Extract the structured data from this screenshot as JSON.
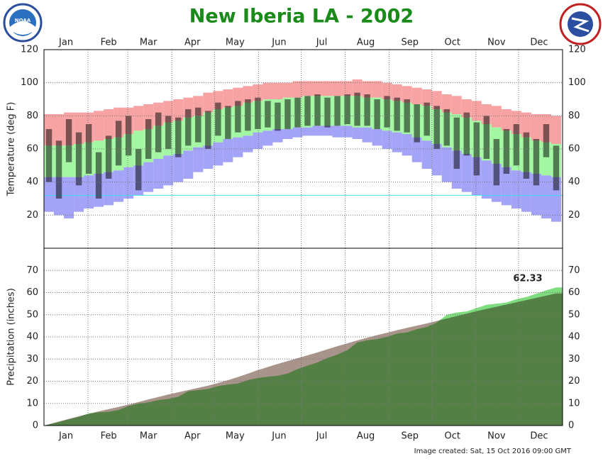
{
  "title": "New Iberia LA - 2002",
  "footer": "Image created: Sat, 15 Oct 2016 09:00 GMT",
  "chart_data": [
    {
      "type": "range_bar",
      "ylabel": "Temperature (deg F)",
      "x": [
        4,
        11,
        18,
        25,
        32,
        39,
        46,
        53,
        60,
        67,
        74,
        81,
        88,
        95,
        102,
        109,
        116,
        123,
        130,
        137,
        144,
        151,
        158,
        165,
        172,
        179,
        186,
        193,
        200,
        207,
        214,
        221,
        228,
        235,
        242,
        249,
        256,
        263,
        270,
        277,
        284,
        291,
        298,
        305,
        312,
        319,
        326,
        333,
        340,
        347,
        354,
        361
      ],
      "xlim": [
        0.5,
        365.5
      ],
      "xticks": [
        {
          "value": 16,
          "label": "Jan"
        },
        {
          "value": 46,
          "label": "Feb"
        },
        {
          "value": 74,
          "label": "Mar"
        },
        {
          "value": 105,
          "label": "Apr"
        },
        {
          "value": 135,
          "label": "May"
        },
        {
          "value": 166,
          "label": "Jun"
        },
        {
          "value": 196,
          "label": "Jul"
        },
        {
          "value": 227,
          "label": "Aug"
        },
        {
          "value": 258,
          "label": "Sep"
        },
        {
          "value": 288,
          "label": "Oct"
        },
        {
          "value": 319,
          "label": "Nov"
        },
        {
          "value": 349,
          "label": "Dec"
        }
      ],
      "xgrid": [
        31.5,
        59.5,
        90.5,
        120.5,
        151.5,
        181.5,
        212.5,
        243.5,
        273.5,
        304.5,
        334.5
      ],
      "ylim": [
        0,
        120
      ],
      "yticks": [
        20,
        40,
        60,
        80,
        100,
        120
      ],
      "grid": true,
      "reference_line": 32,
      "reference_color": "#40e0f0",
      "colors": {
        "record_high": "#f7a3a3",
        "normal": "#a3f7a3",
        "record_low": "#a3a3f7",
        "observed": "#000000"
      },
      "record_high": [
        81,
        81,
        82,
        82,
        82,
        83,
        84,
        85,
        85,
        86,
        87,
        88,
        89,
        90,
        91,
        92,
        94,
        95,
        96,
        97,
        98,
        99,
        100,
        100,
        100,
        101,
        101,
        101,
        101,
        101,
        101,
        102,
        101,
        101,
        100,
        99,
        98,
        97,
        96,
        95,
        93,
        92,
        90,
        89,
        87,
        86,
        84,
        83,
        82,
        81,
        81,
        80
      ],
      "normal_high": [
        62,
        62,
        62,
        63,
        64,
        65,
        66,
        67,
        69,
        71,
        72,
        74,
        76,
        77,
        79,
        80,
        82,
        84,
        85,
        86,
        88,
        89,
        90,
        90,
        91,
        91,
        92,
        92,
        92,
        92,
        92,
        92,
        91,
        91,
        90,
        89,
        88,
        87,
        86,
        84,
        82,
        81,
        79,
        77,
        75,
        73,
        71,
        69,
        67,
        65,
        64,
        63
      ],
      "normal_low": [
        43,
        43,
        43,
        43,
        44,
        45,
        46,
        47,
        49,
        50,
        52,
        54,
        56,
        57,
        59,
        61,
        62,
        64,
        66,
        67,
        68,
        70,
        71,
        72,
        72,
        73,
        73,
        74,
        74,
        74,
        74,
        73,
        73,
        72,
        71,
        70,
        69,
        67,
        65,
        63,
        61,
        59,
        57,
        55,
        53,
        51,
        49,
        47,
        46,
        45,
        44,
        43
      ],
      "record_low": [
        22,
        20,
        18,
        22,
        24,
        25,
        26,
        28,
        30,
        32,
        34,
        36,
        38,
        40,
        42,
        46,
        48,
        50,
        52,
        55,
        58,
        60,
        62,
        64,
        66,
        67,
        68,
        68,
        68,
        67,
        67,
        66,
        64,
        62,
        60,
        58,
        56,
        52,
        48,
        44,
        40,
        36,
        34,
        32,
        30,
        28,
        26,
        24,
        22,
        20,
        18,
        16
      ],
      "observed_high": [
        72,
        65,
        78,
        70,
        75,
        58,
        68,
        77,
        80,
        60,
        78,
        82,
        80,
        79,
        84,
        85,
        83,
        88,
        86,
        89,
        90,
        91,
        89,
        88,
        90,
        91,
        92,
        93,
        91,
        92,
        93,
        94,
        93,
        90,
        92,
        91,
        90,
        87,
        88,
        86,
        84,
        79,
        82,
        76,
        80,
        66,
        72,
        75,
        70,
        66,
        75,
        62
      ],
      "observed_low": [
        40,
        30,
        52,
        38,
        45,
        30,
        42,
        50,
        56,
        35,
        54,
        58,
        60,
        55,
        62,
        64,
        60,
        68,
        66,
        70,
        71,
        72,
        73,
        71,
        72,
        73,
        74,
        74,
        73,
        74,
        75,
        74,
        74,
        72,
        73,
        71,
        70,
        64,
        68,
        60,
        62,
        48,
        56,
        44,
        54,
        38,
        45,
        50,
        42,
        38,
        55,
        35
      ]
    },
    {
      "type": "area",
      "ylabel": "Precipitation (inches)",
      "x": [
        4,
        11,
        18,
        25,
        32,
        39,
        46,
        53,
        60,
        67,
        74,
        81,
        88,
        95,
        102,
        109,
        116,
        123,
        130,
        137,
        144,
        151,
        158,
        165,
        172,
        179,
        186,
        193,
        200,
        207,
        214,
        221,
        228,
        235,
        242,
        249,
        256,
        263,
        270,
        277,
        284,
        291,
        298,
        305,
        312,
        319,
        326,
        333,
        340,
        347,
        354,
        361
      ],
      "xlim": [
        0.5,
        365.5
      ],
      "xticks": [
        {
          "value": 16,
          "label": "Jan"
        },
        {
          "value": 46,
          "label": "Feb"
        },
        {
          "value": 74,
          "label": "Mar"
        },
        {
          "value": 105,
          "label": "Apr"
        },
        {
          "value": 135,
          "label": "May"
        },
        {
          "value": 166,
          "label": "Jun"
        },
        {
          "value": 196,
          "label": "Jul"
        },
        {
          "value": 227,
          "label": "Aug"
        },
        {
          "value": 258,
          "label": "Sep"
        },
        {
          "value": 288,
          "label": "Oct"
        },
        {
          "value": 319,
          "label": "Nov"
        },
        {
          "value": 349,
          "label": "Dec"
        }
      ],
      "xgrid": [
        31.5,
        59.5,
        90.5,
        120.5,
        151.5,
        181.5,
        212.5,
        243.5,
        273.5,
        304.5,
        334.5
      ],
      "ylim": [
        0,
        80
      ],
      "yticks": [
        0,
        10,
        20,
        30,
        40,
        50,
        60,
        70
      ],
      "grid": true,
      "series": [
        {
          "color": "#7fdc7f",
          "values": [
            0.5,
            1.6,
            2.8,
            3.9,
            5.5,
            6.0,
            6.2,
            7.0,
            8.8,
            9.9,
            10.5,
            11.5,
            12.0,
            13.0,
            15.5,
            16.0,
            16.5,
            17.8,
            18.5,
            19.0,
            20.5,
            21.5,
            22.0,
            22.5,
            23.5,
            25.5,
            27.0,
            28.5,
            30.5,
            32.0,
            34.0,
            37.5,
            38.5,
            39.0,
            40.0,
            41.5,
            42.0,
            43.5,
            44.5,
            46.5,
            50.0,
            51.0,
            51.5,
            53.0,
            54.5,
            55.0,
            55.5,
            57.0,
            58.0,
            59.5,
            61.0,
            62.33
          ]
        },
        {
          "color": "#a8948a",
          "values": [
            0.6,
            1.8,
            3.0,
            4.2,
            5.3,
            6.4,
            7.4,
            8.4,
            9.5,
            10.6,
            11.8,
            12.9,
            14.0,
            15.0,
            16.0,
            17.0,
            18.0,
            19.2,
            20.5,
            21.9,
            23.4,
            25.0,
            26.4,
            27.8,
            29.1,
            30.4,
            31.7,
            33.0,
            34.4,
            35.8,
            37.1,
            38.4,
            39.6,
            40.8,
            41.9,
            43.0,
            44.1,
            45.1,
            46.1,
            47.2,
            48.3,
            49.4,
            50.5,
            51.6,
            52.6,
            53.6,
            54.6,
            55.6,
            56.6,
            57.6,
            58.6,
            59.6
          ]
        }
      ]
    }
  ]
}
